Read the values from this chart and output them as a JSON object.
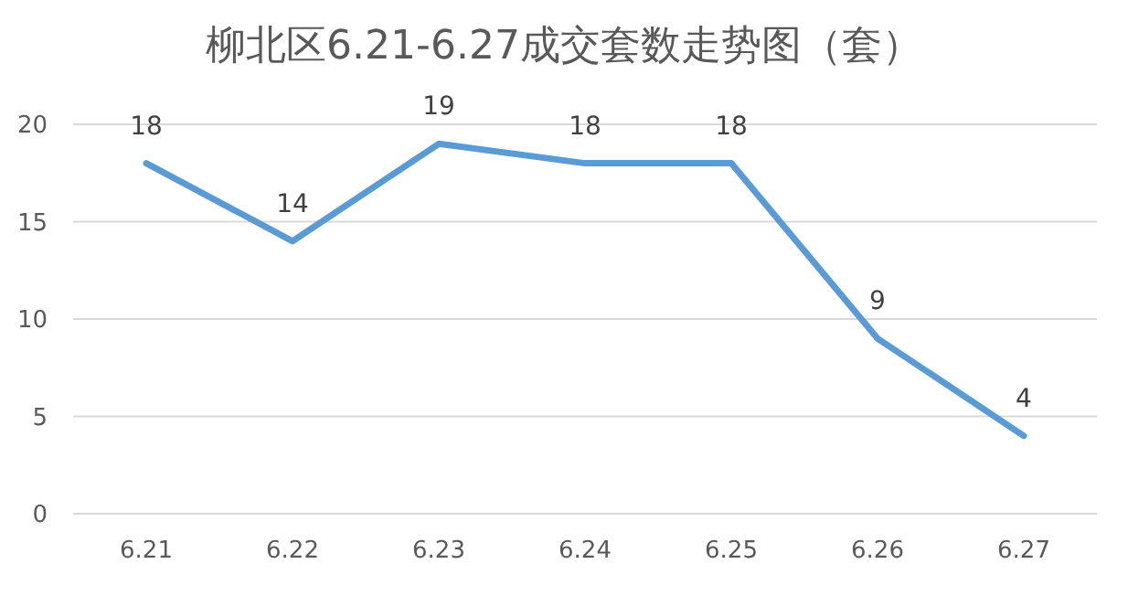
{
  "chart_data": {
    "type": "line",
    "title": "柳北区6.21-6.27成交套数走势图（套）",
    "categories": [
      "6.21",
      "6.22",
      "6.23",
      "6.24",
      "6.25",
      "6.26",
      "6.27"
    ],
    "series": [
      {
        "color": "#5b9bd5",
        "values": [
          18,
          14,
          19,
          18,
          18,
          9,
          4
        ]
      }
    ],
    "ylim": [
      0,
      20
    ],
    "yticks": [
      0,
      5,
      10,
      15,
      20
    ],
    "grid": "y",
    "data_labels": true,
    "marker": "none",
    "line_style": "solid"
  }
}
